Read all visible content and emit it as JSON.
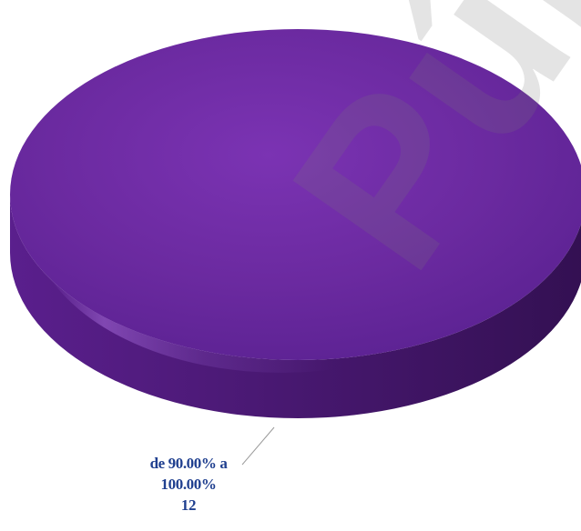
{
  "chart_data": {
    "type": "pie",
    "title": "",
    "slices": [
      {
        "label_line1": "de 90.00% a",
        "label_line2": "100.00%",
        "value": 12,
        "value_label": "12",
        "color": "#6a2aa0"
      }
    ],
    "legend": "none",
    "three_d": true
  },
  "watermark": {
    "text": "Públ"
  }
}
